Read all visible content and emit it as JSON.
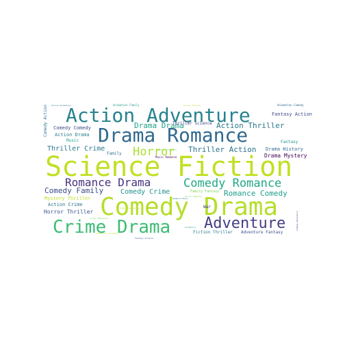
{
  "words": [
    {
      "text": "Science Fiction",
      "color": "#c2df23",
      "rotated": false
    },
    {
      "text": "Comedy Drama",
      "color": "#b5de2b",
      "rotated": false
    },
    {
      "text": "Drama Romance",
      "color": "#31688e",
      "rotated": false
    },
    {
      "text": "Action Adventure",
      "color": "#26828e",
      "rotated": false
    },
    {
      "text": "Crime Drama",
      "color": "#3dbc74",
      "rotated": false
    },
    {
      "text": "Adventure",
      "color": "#433e85",
      "rotated": false
    },
    {
      "text": "Comedy Romance",
      "color": "#22a785",
      "rotated": false
    },
    {
      "text": "Romance Drama",
      "color": "#46327e",
      "rotated": false
    },
    {
      "text": "Horror",
      "color": "#addc30",
      "rotated": false
    },
    {
      "text": "Action Thriller",
      "color": "#2a788e",
      "rotated": false
    },
    {
      "text": "Thriller Action",
      "color": "#2c728e",
      "rotated": false
    },
    {
      "text": "Drama Drama",
      "color": "#1fa187",
      "rotated": false
    },
    {
      "text": "Thriller Crime",
      "color": "#2a788e",
      "rotated": false
    },
    {
      "text": "Romance Comedy",
      "color": "#1f9e89",
      "rotated": false
    },
    {
      "text": "Comedy Family",
      "color": "#3e4989",
      "rotated": false
    },
    {
      "text": "Comedy Crime",
      "color": "#21918c",
      "rotated": false
    },
    {
      "text": "Fantasy Action",
      "color": "#3e4989",
      "rotated": false
    },
    {
      "text": "Drama Mystery",
      "color": "#440154",
      "rotated": false
    },
    {
      "text": "Drama History",
      "color": "#31688e",
      "rotated": false
    },
    {
      "text": "Comedy Comedy",
      "color": "#3e4989",
      "rotated": false
    },
    {
      "text": "Action Drama",
      "color": "#277f8e",
      "rotated": false
    },
    {
      "text": "Music",
      "color": "#1f9e89",
      "rotated": false
    },
    {
      "text": "Family",
      "color": "#2c728e",
      "rotated": false
    },
    {
      "text": "Mystery Thriller",
      "color": "#bddf26",
      "rotated": false
    },
    {
      "text": "Action Crime",
      "color": "#2c728e",
      "rotated": false
    },
    {
      "text": "Horror Thriller",
      "color": "#3b528b",
      "rotated": false
    },
    {
      "text": "Fantasy",
      "color": "#21918c",
      "rotated": false
    },
    {
      "text": "Family Fantasy",
      "color": "#7ad151",
      "rotated": false
    },
    {
      "text": "War",
      "color": "#46327e",
      "rotated": false
    },
    {
      "text": "Fiction Thriller",
      "color": "#2a788e",
      "rotated": false
    },
    {
      "text": "Adventure Fantasy",
      "color": "#3b528b",
      "rotated": false
    },
    {
      "text": "Thriller Science",
      "color": "#433e85",
      "rotated": false
    },
    {
      "text": "Music Romance",
      "color": "#440154",
      "rotated": false
    },
    {
      "text": "Animation Comedy",
      "color": "#31688e",
      "rotated": false
    },
    {
      "text": "Animation Family",
      "color": "#1f9e89",
      "rotated": false
    },
    {
      "text": "Action Animation",
      "color": "#2a788e",
      "rotated": false
    },
    {
      "text": "Horror Mystery",
      "color": "#7ad151",
      "rotated": false
    },
    {
      "text": "Comedy Animation",
      "color": "#c2df23",
      "rotated": false
    },
    {
      "text": "Animation",
      "color": "#1f9e89",
      "rotated": false
    },
    {
      "text": "Crime Adventure",
      "color": "#7ad151",
      "rotated": false
    },
    {
      "text": "Fantasy Science",
      "color": "#3b528b",
      "rotated": false
    },
    {
      "text": "Adventure Animation",
      "color": "#c2df23",
      "rotated": false
    },
    {
      "text": "Action Fiction",
      "color": "#b5de2b",
      "rotated": false
    },
    {
      "text": "Family Adventure",
      "color": "#7ad151",
      "rotated": false
    },
    {
      "text": "Romance Music",
      "color": "#2a788e",
      "rotated": false
    },
    {
      "text": "Comedy Action",
      "color": "#2c728e",
      "rotated": true
    },
    {
      "text": "Comedy Adventure",
      "color": "#433e85",
      "rotated": true
    }
  ]
}
